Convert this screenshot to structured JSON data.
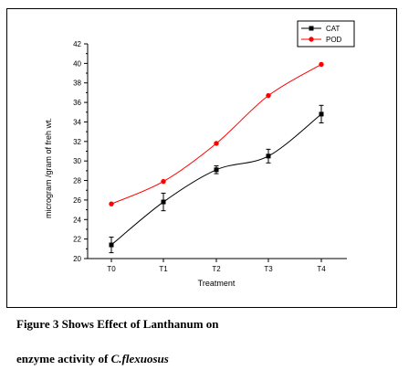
{
  "chart_data": {
    "type": "line",
    "title": "",
    "xlabel": "Treatment",
    "ylabel": "microgram /gram of freh wt.",
    "categories": [
      "T0",
      "T1",
      "T2",
      "T3",
      "T4"
    ],
    "ylim": [
      20,
      42
    ],
    "yticks": [
      20,
      22,
      24,
      26,
      28,
      30,
      32,
      34,
      36,
      38,
      40,
      42
    ],
    "grid": false,
    "legend_position": "top-right",
    "series": [
      {
        "name": "CAT",
        "values": [
          21.4,
          25.8,
          29.1,
          30.5,
          34.8
        ],
        "errors": [
          0.8,
          0.9,
          0.4,
          0.7,
          0.9
        ],
        "color": "#000000",
        "marker": "square"
      },
      {
        "name": "POD",
        "values": [
          25.6,
          27.9,
          31.8,
          36.7,
          39.9
        ],
        "color": "#ff0000",
        "marker": "circle"
      }
    ]
  },
  "caption": {
    "line1": "Figure 3 Shows Effect of Lanthanum on",
    "line2_prefix": "enzyme activity of ",
    "line2_species": "C.flexuosus"
  }
}
